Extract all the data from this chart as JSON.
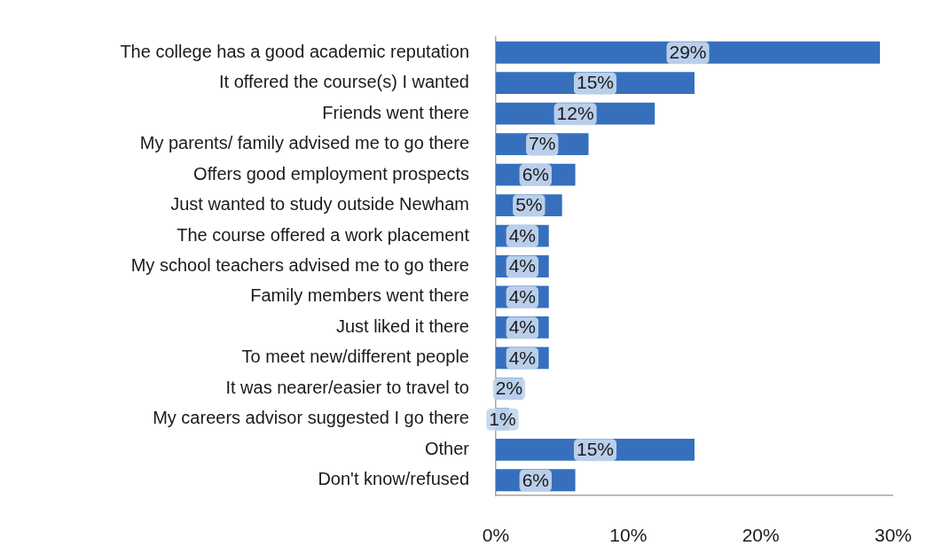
{
  "chart_data": {
    "type": "bar",
    "orientation": "horizontal",
    "categories": [
      "The college has a good academic reputation",
      "It offered the course(s) I wanted",
      "Friends went there",
      "My parents/ family advised me to go there",
      "Offers good employment prospects",
      "Just wanted to study outside Newham",
      "The course offered a work placement",
      "My school teachers advised me to go there",
      "Family members went there",
      "Just liked it there",
      "To meet new/different people",
      "It was nearer/easier to travel to",
      "My careers advisor suggested I go there",
      "Other",
      "Don't know/refused"
    ],
    "values": [
      29,
      15,
      12,
      7,
      6,
      5,
      4,
      4,
      4,
      4,
      4,
      2,
      1,
      15,
      6
    ],
    "value_labels": [
      "29%",
      "15%",
      "12%",
      "7%",
      "6%",
      "5%",
      "4%",
      "4%",
      "4%",
      "4%",
      "4%",
      "2%",
      "1%",
      "15%",
      "6%"
    ],
    "color": "#3670bd",
    "xlim": [
      0,
      30
    ],
    "xticks": [
      {
        "value": 0,
        "label": "0%"
      },
      {
        "value": 10,
        "label": "10%"
      },
      {
        "value": 20,
        "label": "20%"
      },
      {
        "value": 30,
        "label": "30%"
      }
    ]
  }
}
